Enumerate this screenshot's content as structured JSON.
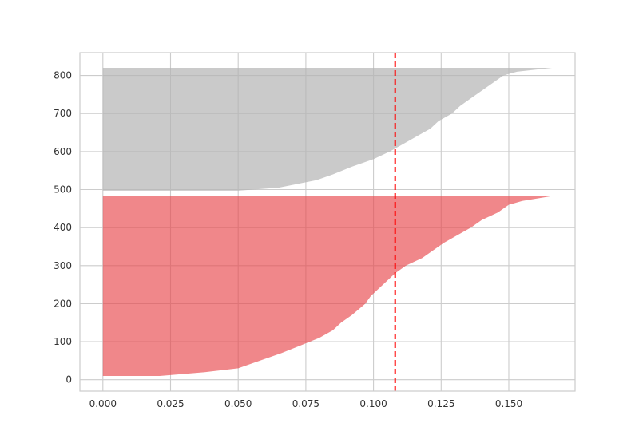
{
  "chart_data": {
    "type": "area",
    "title": "",
    "xlabel": "",
    "ylabel": "",
    "xlim": [
      -0.0085,
      0.1745
    ],
    "ylim": [
      -30,
      860
    ],
    "grid": true,
    "x_ticks": [
      0.0,
      0.025,
      0.05,
      0.075,
      0.1,
      0.125,
      0.15
    ],
    "x_tick_labels": [
      "0.000",
      "0.025",
      "0.050",
      "0.075",
      "0.100",
      "0.125",
      "0.150"
    ],
    "y_ticks": [
      0,
      100,
      200,
      300,
      400,
      500,
      600,
      700,
      800
    ],
    "y_tick_labels": [
      "0",
      "100",
      "200",
      "300",
      "400",
      "500",
      "600",
      "700",
      "800"
    ],
    "series": [
      {
        "color": "#e8474c",
        "opacity": 0.65,
        "y_start": 10,
        "y_end": 483,
        "points": [
          [
            10,
            0.021
          ],
          [
            20,
            0.038
          ],
          [
            30,
            0.05
          ],
          [
            50,
            0.058
          ],
          [
            70,
            0.066
          ],
          [
            90,
            0.073
          ],
          [
            110,
            0.08
          ],
          [
            130,
            0.085
          ],
          [
            150,
            0.088
          ],
          [
            170,
            0.092
          ],
          [
            200,
            0.097
          ],
          [
            220,
            0.099
          ],
          [
            240,
            0.102
          ],
          [
            260,
            0.105
          ],
          [
            280,
            0.108
          ],
          [
            300,
            0.112
          ],
          [
            320,
            0.118
          ],
          [
            340,
            0.122
          ],
          [
            360,
            0.126
          ],
          [
            380,
            0.131
          ],
          [
            400,
            0.136
          ],
          [
            420,
            0.14
          ],
          [
            440,
            0.146
          ],
          [
            460,
            0.15
          ],
          [
            470,
            0.155
          ],
          [
            483,
            0.166
          ]
        ]
      },
      {
        "color": "#b3b3b3",
        "opacity": 0.7,
        "y_start": 497,
        "y_end": 820,
        "points": [
          [
            497,
            0.05
          ],
          [
            505,
            0.065
          ],
          [
            515,
            0.072
          ],
          [
            525,
            0.079
          ],
          [
            540,
            0.085
          ],
          [
            560,
            0.092
          ],
          [
            580,
            0.1
          ],
          [
            600,
            0.106
          ],
          [
            620,
            0.111
          ],
          [
            640,
            0.116
          ],
          [
            660,
            0.121
          ],
          [
            680,
            0.124
          ],
          [
            700,
            0.129
          ],
          [
            720,
            0.132
          ],
          [
            740,
            0.136
          ],
          [
            760,
            0.14
          ],
          [
            780,
            0.144
          ],
          [
            800,
            0.148
          ],
          [
            810,
            0.153
          ],
          [
            820,
            0.166
          ]
        ]
      }
    ],
    "reference_lines": [
      {
        "axis": "x",
        "value": 0.108,
        "color": "#ff0000",
        "style": "dashed"
      }
    ]
  }
}
